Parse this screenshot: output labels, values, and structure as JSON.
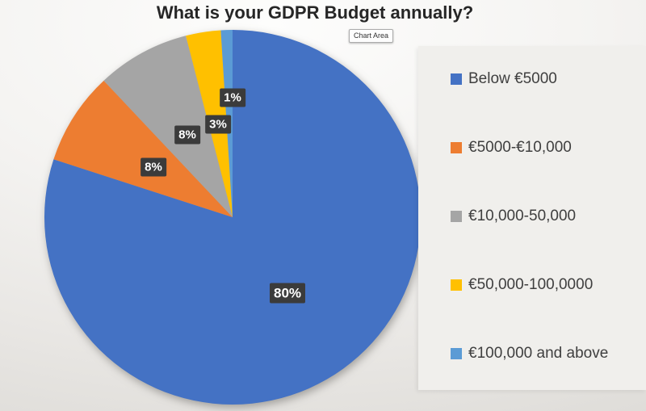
{
  "title": "What is your GDPR Budget annually?",
  "tooltip_label": "Chart Area",
  "chart_data": {
    "type": "pie",
    "title": "What is your GDPR Budget annually?",
    "categories": [
      "Below €5000",
      "€5000-€10,000",
      "€10,000-50,000",
      "€50,000-100,0000",
      "€100,000 and above"
    ],
    "values": [
      80,
      8,
      8,
      3,
      1
    ],
    "data_labels": [
      "80%",
      "8%",
      "8%",
      "3%",
      "1%"
    ],
    "colors": [
      "#4472C4",
      "#ED7D31",
      "#A5A5A5",
      "#FFC000",
      "#5B9BD5"
    ],
    "legend_position": "right",
    "start_angle_deg": 0,
    "direction": "clockwise",
    "label_style": {
      "background": "#3B3B3B",
      "color": "#FFFFFF"
    },
    "label_radial": [
      0.5,
      0.5,
      0.5,
      0.5,
      0.64
    ]
  }
}
